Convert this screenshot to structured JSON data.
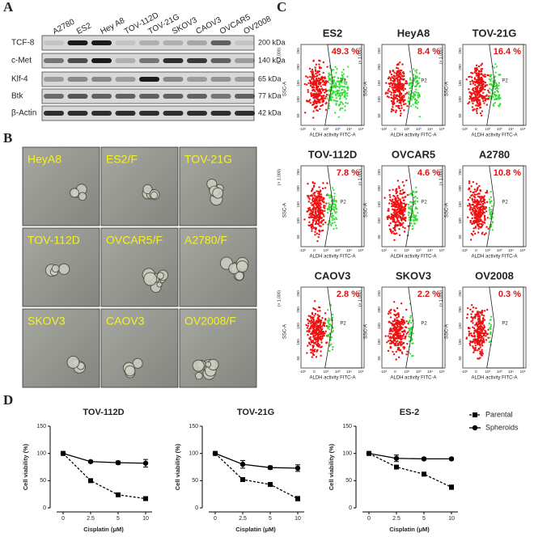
{
  "panels": {
    "a": "A",
    "b": "B",
    "c": "C",
    "d": "D"
  },
  "western_blot": {
    "lanes": [
      "A2780",
      "ES2",
      "Hey A8",
      "TOV-112D",
      "TOV-21G",
      "SKOV3",
      "CAOV3",
      "OVCAR5",
      "OV2008"
    ],
    "rows": [
      {
        "label": "TCF-8",
        "size": "200 kDa"
      },
      {
        "label": "c-Met",
        "size": "140 kDa"
      },
      {
        "label": "Klf-4",
        "size": "65 kDa"
      },
      {
        "label": "Btk",
        "size": "77 kDa"
      },
      {
        "label": "β-Actin",
        "size": "42 kDa"
      }
    ]
  },
  "spheroids": {
    "labels": [
      "HeyA8",
      "ES2/F",
      "TOV-21G",
      "TOV-112D",
      "OVCAR5/F",
      "A2780/F",
      "SKOV3",
      "CAOV3",
      "OV2008/F"
    ]
  },
  "flow": {
    "y_axis_label": "SSC-A",
    "x_axis_label": "ALDH activity FITC-A",
    "y_scale": "(× 1,000)",
    "gate": "P2",
    "yticks": [
      "50",
      "100",
      "150",
      "200",
      "250"
    ],
    "xticks": [
      "-10²",
      "0",
      "10²",
      "10³",
      "10⁴",
      "10⁵"
    ],
    "plots": [
      {
        "title": "ES2",
        "percent": "49.3 %"
      },
      {
        "title": "HeyA8",
        "percent": "8.4 %"
      },
      {
        "title": "TOV-21G",
        "percent": "16.4 %"
      },
      {
        "title": "TOV-112D",
        "percent": "7.8 %"
      },
      {
        "title": "OVCAR5",
        "percent": "4.6 %"
      },
      {
        "title": "A2780",
        "percent": "10.8 %"
      },
      {
        "title": "CAOV3",
        "percent": "2.8 %"
      },
      {
        "title": "SKOV3",
        "percent": "2.2 %"
      },
      {
        "title": "OV2008",
        "percent": "0.3 %"
      }
    ]
  },
  "chart_data": [
    {
      "type": "line",
      "title": "TOV-112D",
      "x_label": "Cisplatin (μM)",
      "y_label": "Cell viability (%)",
      "categories": [
        "0",
        "2.5",
        "5",
        "10"
      ],
      "ylim": [
        0,
        150
      ],
      "yticks": [
        0,
        50,
        100,
        150
      ],
      "series": [
        {
          "name": "Parental",
          "color": "#000000",
          "style": "dashed",
          "marker": "square",
          "values": [
            100,
            50,
            24,
            17
          ],
          "errors": [
            2,
            3,
            3,
            3
          ]
        },
        {
          "name": "Spheroids",
          "color": "#000000",
          "style": "solid",
          "marker": "circle",
          "values": [
            100,
            85,
            83,
            82
          ],
          "errors": [
            2,
            2,
            3,
            7
          ]
        }
      ]
    },
    {
      "type": "line",
      "title": "TOV-21G",
      "x_label": "Cisplatin (μM)",
      "y_label": "Cell viability (%)",
      "categories": [
        "0",
        "2.5",
        "5",
        "10"
      ],
      "ylim": [
        0,
        150
      ],
      "yticks": [
        0,
        50,
        100,
        150
      ],
      "series": [
        {
          "name": "Parental",
          "color": "#000000",
          "style": "dashed",
          "marker": "square",
          "values": [
            100,
            52,
            43,
            17
          ],
          "errors": [
            3,
            3,
            3,
            4
          ]
        },
        {
          "name": "Spheroids",
          "color": "#000000",
          "style": "solid",
          "marker": "circle",
          "values": [
            100,
            80,
            74,
            73
          ],
          "errors": [
            3,
            7,
            3,
            6
          ]
        }
      ]
    },
    {
      "type": "line",
      "title": "ES-2",
      "x_label": "Cisplatin (μM)",
      "y_label": "Cell viability (%)",
      "categories": [
        "0",
        "2.5",
        "5",
        "10"
      ],
      "ylim": [
        0,
        150
      ],
      "yticks": [
        0,
        50,
        100,
        150
      ],
      "series": [
        {
          "name": "Parental",
          "color": "#000000",
          "style": "dashed",
          "marker": "square",
          "values": [
            100,
            75,
            62,
            38
          ],
          "errors": [
            2,
            3,
            3,
            4
          ]
        },
        {
          "name": "Spheroids",
          "color": "#000000",
          "style": "solid",
          "marker": "circle",
          "values": [
            100,
            91,
            90,
            90
          ],
          "errors": [
            2,
            6,
            2,
            2
          ]
        }
      ]
    }
  ]
}
